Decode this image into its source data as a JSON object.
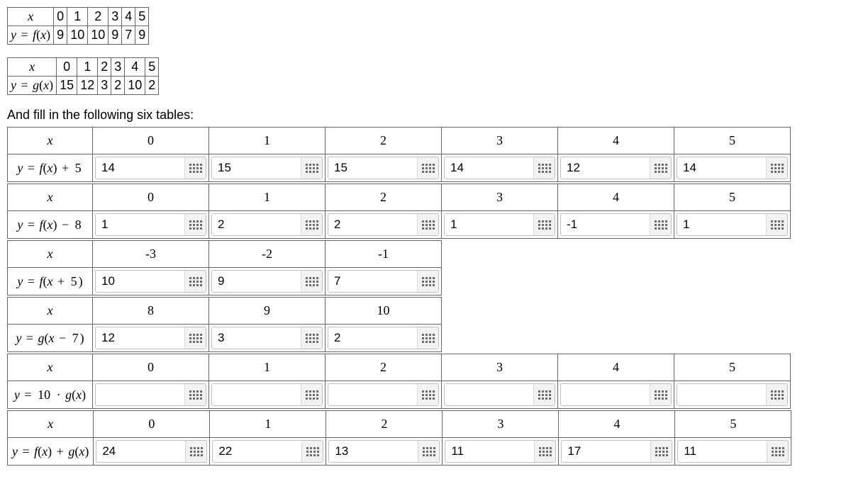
{
  "given_f": {
    "label_x": "x",
    "label_y": "y = f(x)",
    "x": [
      "0",
      "1",
      "2",
      "3",
      "4",
      "5"
    ],
    "y": [
      "9",
      "10",
      "10",
      "9",
      "7",
      "9"
    ]
  },
  "given_g": {
    "label_x": "x",
    "label_y": "y = g(x)",
    "x": [
      "0",
      "1",
      "2",
      "3",
      "4",
      "5"
    ],
    "y": [
      "15",
      "12",
      "3",
      "2",
      "10",
      "2"
    ]
  },
  "instruction": "And fill in the following six tables:",
  "tables": [
    {
      "label": "y = f(x) + 5",
      "x": [
        "0",
        "1",
        "2",
        "3",
        "4",
        "5"
      ],
      "vals": [
        "14",
        "15",
        "15",
        "14",
        "12",
        "14"
      ]
    },
    {
      "label": "y = f(x) − 8",
      "x": [
        "0",
        "1",
        "2",
        "3",
        "4",
        "5"
      ],
      "vals": [
        "1",
        "2",
        "2",
        "1",
        "-1",
        "1"
      ]
    },
    {
      "label": "y = f(x + 5)",
      "x": [
        "-3",
        "-2",
        "-1"
      ],
      "vals": [
        "10",
        "9",
        "7"
      ]
    },
    {
      "label": "y = g(x − 7)",
      "x": [
        "8",
        "9",
        "10"
      ],
      "vals": [
        "12",
        "3",
        "2"
      ]
    },
    {
      "label": "y = 10 · g(x)",
      "x": [
        "0",
        "1",
        "2",
        "3",
        "4",
        "5"
      ],
      "vals": [
        "",
        "",
        "",
        "",
        "",
        ""
      ]
    },
    {
      "label": "y = f(x) + g(x)",
      "x": [
        "0",
        "1",
        "2",
        "3",
        "4",
        "5"
      ],
      "vals": [
        "24",
        "22",
        "13",
        "11",
        "17",
        "11"
      ]
    }
  ],
  "x_var": "x",
  "colors": {
    "border": "#666666",
    "grip_bg": "#f2f2f2",
    "dot": "#6b6b6b"
  }
}
